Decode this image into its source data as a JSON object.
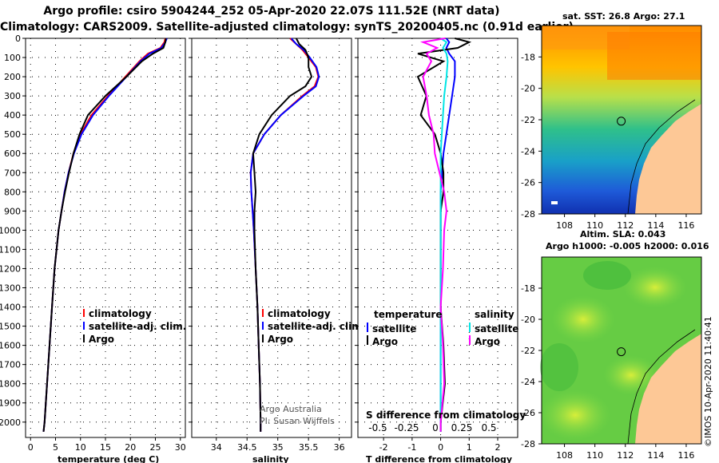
{
  "header": {
    "title_line1": "Argo profile: csiro 5904244_252 05-Apr-2020 22.07S 111.52E (NRT data)",
    "title_line2": "Climatology: CARS2009. Satellite-adjusted climatology: synTS_20200405.nc (0.91d earlier)"
  },
  "legend": {
    "climatology": "climatology",
    "satellite_adj": "satellite-adj. clim.",
    "argo": "Argo",
    "temperature": "temperature",
    "salinity": "salinity",
    "satellite": "satellite"
  },
  "notes": {
    "argo_australia": "Argo Australia",
    "pi": "PI: Susan Wijffels",
    "s_diff": "S difference from climatology"
  },
  "maps": {
    "top_title": "sat. SST: 26.8 Argo: 27.1",
    "bottom_title1": "Altim. SLA: 0.043",
    "bottom_title2": "Argo h1000: -0.005 h2000: 0.016",
    "lon_ticks": [
      "108",
      "110",
      "112",
      "114",
      "116"
    ],
    "lat_ticks": [
      "-18",
      "-20",
      "-22",
      "-24",
      "-26",
      "-28"
    ],
    "lon_range": [
      106.5,
      117
    ],
    "lat_range": [
      -28,
      -16
    ]
  },
  "credit": "©IMOS 10-Apr-2020 11:40:41",
  "colors": {
    "climatology": "#ff0000",
    "satellite": "#0000ff",
    "argo": "#000000",
    "sal_sat": "#00e5e5",
    "sal_argo": "#ff00ff"
  },
  "chart_data": [
    {
      "type": "line",
      "xlabel": "temperature (deg C)",
      "ylabel": "",
      "xlim": [
        -1,
        31
      ],
      "ylim": [
        2080,
        0
      ],
      "x_ticks": [
        "0",
        "5",
        "10",
        "15",
        "20",
        "25",
        "30"
      ],
      "y_ticks": [
        "0",
        "100",
        "200",
        "300",
        "400",
        "500",
        "600",
        "700",
        "800",
        "900",
        "1000",
        "1100",
        "1200",
        "1300",
        "1400",
        "1500",
        "1600",
        "1700",
        "1800",
        "1900",
        "2000"
      ],
      "depth": [
        0,
        20,
        50,
        80,
        120,
        200,
        300,
        400,
        500,
        600,
        700,
        800,
        900,
        1000,
        1200,
        1400,
        1600,
        1800,
        2000,
        2050
      ],
      "series": [
        {
          "name": "climatology",
          "values": [
            27.0,
            26.8,
            26.0,
            23.5,
            21.8,
            19.0,
            15.5,
            12.2,
            10.0,
            8.6,
            7.6,
            6.8,
            6.2,
            5.6,
            4.8,
            4.3,
            3.8,
            3.3,
            2.8,
            2.6
          ]
        },
        {
          "name": "satellite-adj. clim.",
          "values": [
            27.3,
            27.0,
            26.2,
            23.8,
            22.0,
            19.2,
            15.7,
            12.5,
            10.2,
            8.7,
            7.6,
            6.8,
            6.2,
            5.6,
            4.8,
            4.3,
            3.8,
            3.3,
            2.8,
            2.6
          ]
        },
        {
          "name": "Argo",
          "values": [
            27.1,
            27.0,
            26.6,
            24.5,
            22.3,
            19.2,
            15.0,
            11.5,
            9.8,
            8.6,
            7.7,
            6.9,
            6.2,
            5.6,
            4.8,
            4.3,
            3.8,
            3.3,
            2.8,
            2.6
          ]
        }
      ]
    },
    {
      "type": "line",
      "xlabel": "salinity",
      "ylabel": "",
      "xlim": [
        33.6,
        36.2
      ],
      "ylim": [
        2080,
        0
      ],
      "x_ticks": [
        "34",
        "34.5",
        "35",
        "35.5",
        "36"
      ],
      "depth": [
        0,
        30,
        60,
        100,
        150,
        200,
        250,
        300,
        400,
        500,
        600,
        700,
        800,
        900,
        1000,
        1200,
        1400,
        1600,
        1800,
        2000,
        2050
      ],
      "series": [
        {
          "name": "climatology",
          "values": [
            35.2,
            35.3,
            35.4,
            35.5,
            35.62,
            35.66,
            35.6,
            35.4,
            35.05,
            34.78,
            34.6,
            34.56,
            34.57,
            34.59,
            34.61,
            34.64,
            34.67,
            34.69,
            34.71,
            34.72,
            34.72
          ]
        },
        {
          "name": "satellite-adj. clim.",
          "values": [
            35.22,
            35.3,
            35.42,
            35.52,
            35.63,
            35.67,
            35.62,
            35.42,
            35.05,
            34.78,
            34.6,
            34.56,
            34.57,
            34.59,
            34.61,
            34.64,
            34.67,
            34.69,
            34.71,
            34.72,
            34.72
          ]
        },
        {
          "name": "Argo",
          "values": [
            35.3,
            35.35,
            35.45,
            35.5,
            35.5,
            35.55,
            35.45,
            35.2,
            34.9,
            34.7,
            34.6,
            34.62,
            34.64,
            34.62,
            34.62,
            34.64,
            34.67,
            34.69,
            34.71,
            34.72,
            34.72
          ]
        }
      ]
    },
    {
      "type": "line",
      "xlabel": "T difference from climatology",
      "ylabel": "",
      "xlim": [
        -2.9,
        2.7
      ],
      "ylim": [
        2080,
        0
      ],
      "x_ticks": [
        "-2",
        "-1",
        "0",
        "1",
        "2"
      ],
      "s_ticks": [
        "-0.5",
        "-0.25",
        "0",
        "0.25",
        "0.5"
      ],
      "depth": [
        0,
        20,
        50,
        80,
        120,
        200,
        300,
        400,
        500,
        600,
        700,
        800,
        900,
        1000,
        1200,
        1400,
        1600,
        1800,
        2000,
        2050
      ],
      "series": [
        {
          "name": "temperature satellite",
          "values": [
            0.2,
            0.3,
            0.2,
            0.3,
            0.5,
            0.5,
            0.4,
            0.3,
            0.2,
            0.1,
            0.05,
            0.0,
            0.0,
            0.0,
            0.0,
            0.0,
            0.0,
            0.0,
            0.0,
            0.0
          ]
        },
        {
          "name": "temperature Argo",
          "values": [
            0.5,
            1.0,
            0.6,
            -0.8,
            0.1,
            -0.8,
            -0.5,
            -0.7,
            -0.2,
            0.0,
            0.1,
            0.1,
            0.0,
            0.0,
            0.0,
            0.0,
            0.1,
            0.15,
            0.0,
            0.0
          ]
        },
        {
          "name": "salinity satellite",
          "values": [
            0.0,
            0.05,
            0.02,
            0.05,
            0.06,
            0.05,
            0.03,
            0.02,
            0.01,
            0.0,
            0.0,
            0.0,
            0.0,
            0.0,
            0.0,
            0.0,
            0.0,
            0.0,
            0.0,
            0.0
          ]
        },
        {
          "name": "salinity Argo",
          "values": [
            0.04,
            -0.15,
            -0.03,
            -0.12,
            -0.08,
            -0.15,
            -0.12,
            -0.1,
            -0.06,
            -0.05,
            -0.01,
            0.03,
            0.05,
            0.03,
            0.02,
            0.0,
            0.02,
            0.03,
            0.0,
            0.0
          ]
        }
      ]
    }
  ]
}
